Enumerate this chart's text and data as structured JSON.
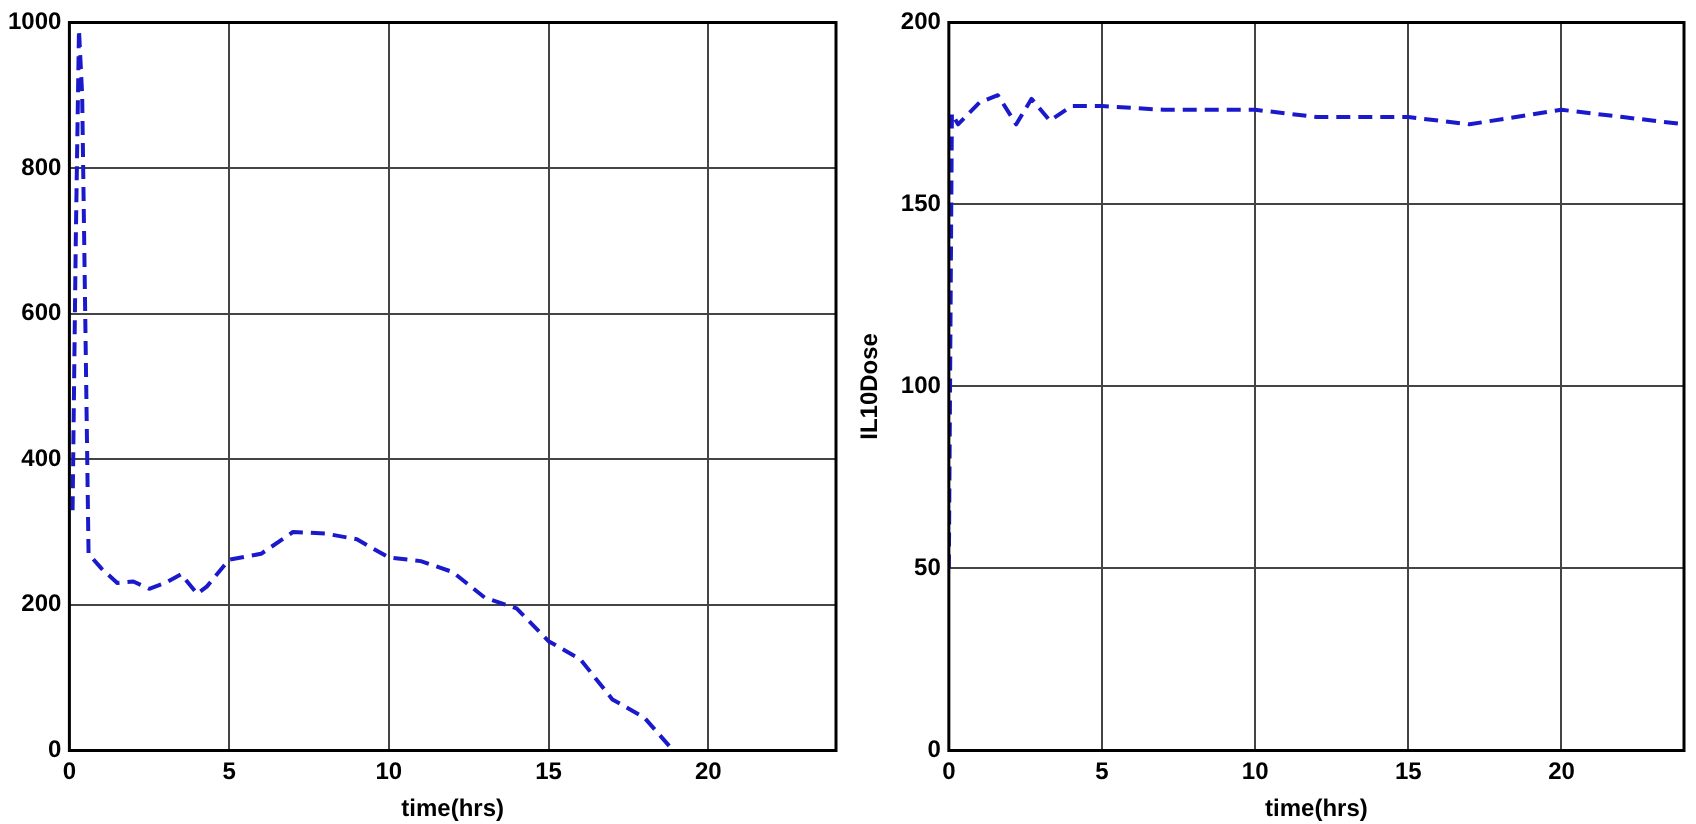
{
  "chart_data": [
    {
      "type": "line",
      "xlabel": "time(hrs)",
      "xlim": [
        0,
        24
      ],
      "xticks": [
        0,
        5,
        10,
        15,
        20
      ],
      "ylim": [
        0,
        1000
      ],
      "yticks": [
        0,
        200,
        400,
        600,
        800,
        1000
      ],
      "grid": true,
      "line_style": "dashed",
      "series": [
        {
          "color": "#1a1acc",
          "x": [
            0.1,
            0.2,
            0.3,
            0.4,
            0.6,
            1,
            1.5,
            2,
            2.5,
            3,
            3.5,
            4,
            4.3,
            5,
            6,
            7,
            8,
            9,
            10,
            11,
            12,
            13,
            14,
            15,
            16,
            17,
            18,
            18.9
          ],
          "values": [
            330,
            700,
            990,
            900,
            270,
            250,
            230,
            232,
            222,
            230,
            242,
            215,
            225,
            262,
            270,
            300,
            298,
            290,
            265,
            260,
            245,
            210,
            195,
            150,
            125,
            70,
            45,
            0
          ]
        }
      ]
    },
    {
      "type": "line",
      "xlabel": "time(hrs)",
      "ylabel": "IL10Dose",
      "xlim": [
        0,
        24
      ],
      "xticks": [
        0,
        5,
        10,
        15,
        20
      ],
      "ylim": [
        0,
        200
      ],
      "yticks": [
        0,
        50,
        100,
        150,
        200
      ],
      "grid": true,
      "line_style": "dashed",
      "series": [
        {
          "color": "#1a1acc",
          "x": [
            0,
            0.1,
            0.3,
            1,
            1.6,
            2.2,
            2.7,
            3.3,
            4,
            5,
            7,
            10,
            12,
            15,
            17,
            20,
            22,
            24
          ],
          "values": [
            50,
            175,
            172,
            178,
            180,
            172,
            179,
            173,
            177,
            177,
            176,
            176,
            174,
            174,
            172,
            176,
            174,
            172
          ]
        }
      ]
    }
  ]
}
